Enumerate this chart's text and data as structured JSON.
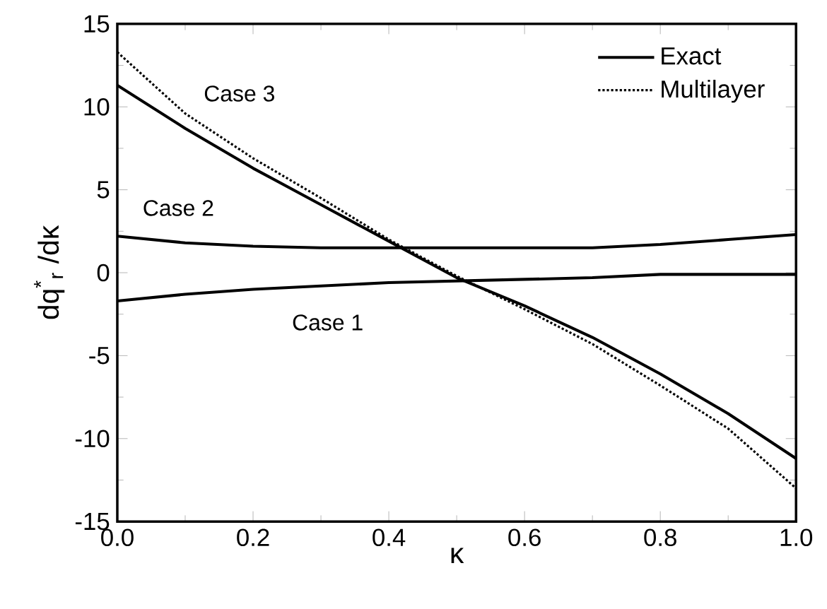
{
  "chart_data": {
    "type": "line",
    "xlabel": "κ",
    "ylabel": "dq$^{*}$$_{r}$ /dκ",
    "x": [
      0,
      0.1,
      0.2,
      0.3,
      0.4,
      0.5,
      0.6,
      0.7,
      0.8,
      0.9,
      1.0
    ],
    "series": [
      {
        "name": "Exact",
        "color": "#000000",
        "line_style": "solid",
        "values": [
          11.3,
          8.7,
          6.3,
          4.1,
          1.9,
          -0.3,
          -2.0,
          -3.9,
          -6.1,
          -8.5,
          -11.2
        ]
      },
      {
        "name": "Multilayer",
        "color": "#000000",
        "line_style": "dotted",
        "values": [
          13.3,
          9.6,
          6.9,
          4.5,
          2.0,
          -0.2,
          -2.2,
          -4.3,
          -6.8,
          -9.4,
          -13.0
        ]
      },
      {
        "color": "#000000",
        "line_style": "solid",
        "values": [
          2.2,
          1.8,
          1.6,
          1.5,
          1.5,
          1.5,
          1.5,
          1.5,
          1.7,
          2.0,
          2.3
        ]
      },
      {
        "color": "#000000",
        "line_style": "solid",
        "values": [
          -1.7,
          -1.3,
          -1.0,
          -0.8,
          -0.6,
          -0.5,
          -0.4,
          -0.3,
          -0.1,
          -0.1,
          -0.1
        ]
      }
    ],
    "annotations": [
      "Case 3",
      "Case 2",
      "Case 1"
    ],
    "xlim": [
      0,
      1
    ],
    "ylim": [
      -15,
      15
    ],
    "xticks": [
      {
        "value": 0,
        "label": "0.0"
      },
      0.2,
      0.4,
      0.6,
      0.8,
      {
        "value": 1,
        "label": "1.0"
      }
    ],
    "yticks": [
      -15,
      -10,
      -5,
      0,
      5,
      10,
      15
    ],
    "legend": "top right",
    "grid": false,
    "marker": "none"
  }
}
